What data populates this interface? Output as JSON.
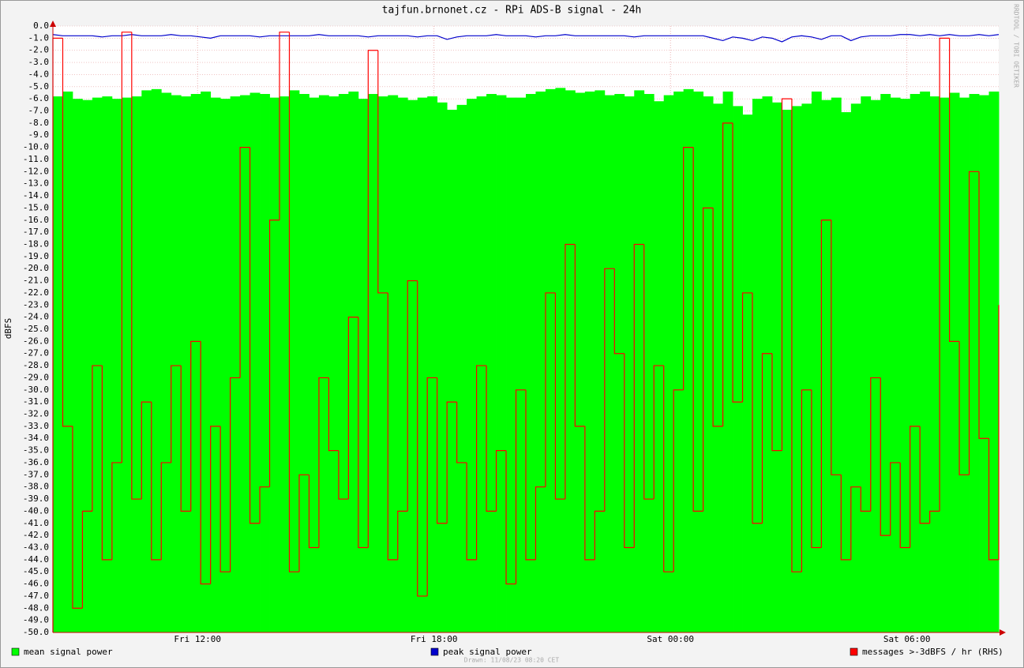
{
  "chart_data": {
    "type": "line",
    "title": "tajfun.brnonet.cz - RPi ADS-B signal - 24h",
    "y_label": "dBFS",
    "watermark": "RRDTOOL / TOBI OETIKER",
    "footnote": "Drawn: 11/08/23 08:20 CET",
    "grid": true,
    "x": [
      8.33,
      8.58,
      8.83,
      9.08,
      9.33,
      9.58,
      9.83,
      10.08,
      10.33,
      10.58,
      10.83,
      11.08,
      11.33,
      11.58,
      11.83,
      12.08,
      12.33,
      12.58,
      12.83,
      13.08,
      13.33,
      13.58,
      13.83,
      14.08,
      14.33,
      14.58,
      14.83,
      15.08,
      15.33,
      15.58,
      15.83,
      16.08,
      16.33,
      16.58,
      16.83,
      17.08,
      17.33,
      17.58,
      17.83,
      18.08,
      18.33,
      18.58,
      18.83,
      19.08,
      19.33,
      19.58,
      19.83,
      20.08,
      20.33,
      20.58,
      20.83,
      21.08,
      21.33,
      21.58,
      21.83,
      22.08,
      22.33,
      22.58,
      22.83,
      23.08,
      23.33,
      23.58,
      23.83,
      24.08,
      24.33,
      24.58,
      24.83,
      25.08,
      25.33,
      25.58,
      25.83,
      26.08,
      26.33,
      26.58,
      26.83,
      27.08,
      27.33,
      27.58,
      27.83,
      28.08,
      28.33,
      28.58,
      28.83,
      29.08,
      29.33,
      29.58,
      29.83,
      30.08,
      30.33,
      30.58,
      30.83,
      31.08,
      31.33,
      31.58,
      31.83,
      32.08,
      32.33
    ],
    "xlim": [
      8.33,
      32.33
    ],
    "xticks": [
      {
        "value": 12,
        "label": "Fri 12:00"
      },
      {
        "value": 18,
        "label": "Fri 18:00"
      },
      {
        "value": 24,
        "label": "Sat 00:00"
      },
      {
        "value": 30,
        "label": "Sat 06:00"
      }
    ],
    "ylim": [
      -50,
      0
    ],
    "yticks": [
      {
        "value": 0,
        "label": "0.0"
      },
      {
        "value": -1,
        "label": "-1.0"
      },
      {
        "value": -2,
        "label": "-2.0"
      },
      {
        "value": -3,
        "label": "-3.0"
      },
      {
        "value": -4,
        "label": "-4.0"
      },
      {
        "value": -5,
        "label": "-5.0"
      },
      {
        "value": -6,
        "label": "-6.0"
      },
      {
        "value": -7,
        "label": "-7.0"
      },
      {
        "value": -8,
        "label": "-8.0"
      },
      {
        "value": -9,
        "label": "-9.0"
      },
      {
        "value": -10,
        "label": "-10.0"
      },
      {
        "value": -11,
        "label": "-11.0"
      },
      {
        "value": -12,
        "label": "-12.0"
      },
      {
        "value": -13,
        "label": "-13.0"
      },
      {
        "value": -14,
        "label": "-14.0"
      },
      {
        "value": -15,
        "label": "-15.0"
      },
      {
        "value": -16,
        "label": "-16.0"
      },
      {
        "value": -17,
        "label": "-17.0"
      },
      {
        "value": -18,
        "label": "-18.0"
      },
      {
        "value": -19,
        "label": "-19.0"
      },
      {
        "value": -20,
        "label": "-20.0"
      },
      {
        "value": -21,
        "label": "-21.0"
      },
      {
        "value": -22,
        "label": "-22.0"
      },
      {
        "value": -23,
        "label": "-23.0"
      },
      {
        "value": -24,
        "label": "-24.0"
      },
      {
        "value": -25,
        "label": "-25.0"
      },
      {
        "value": -26,
        "label": "-26.0"
      },
      {
        "value": -27,
        "label": "-27.0"
      },
      {
        "value": -28,
        "label": "-28.0"
      },
      {
        "value": -29,
        "label": "-29.0"
      },
      {
        "value": -30,
        "label": "-30.0"
      },
      {
        "value": -31,
        "label": "-31.0"
      },
      {
        "value": -32,
        "label": "-32.0"
      },
      {
        "value": -33,
        "label": "-33.0"
      },
      {
        "value": -34,
        "label": "-34.0"
      },
      {
        "value": -35,
        "label": "-35.0"
      },
      {
        "value": -36,
        "label": "-36.0"
      },
      {
        "value": -37,
        "label": "-37.0"
      },
      {
        "value": -38,
        "label": "-38.0"
      },
      {
        "value": -39,
        "label": "-39.0"
      },
      {
        "value": -40,
        "label": "-40.0"
      },
      {
        "value": -41,
        "label": "-41.0"
      },
      {
        "value": -42,
        "label": "-42.0"
      },
      {
        "value": -43,
        "label": "-43.0"
      },
      {
        "value": -44,
        "label": "-44.0"
      },
      {
        "value": -45,
        "label": "-45.0"
      },
      {
        "value": -46,
        "label": "-46.0"
      },
      {
        "value": -47,
        "label": "-47.0"
      },
      {
        "value": -48,
        "label": "-48.0"
      },
      {
        "value": -49,
        "label": "-49.0"
      },
      {
        "value": -50,
        "label": "-50.0"
      }
    ],
    "series": [
      {
        "name": "mean signal power",
        "color": "#00ff00",
        "style": "area",
        "values": [
          -5.8,
          -5.4,
          -6.0,
          -6.1,
          -5.9,
          -5.8,
          -6.0,
          -5.9,
          -5.8,
          -5.3,
          -5.2,
          -5.5,
          -5.7,
          -5.8,
          -5.6,
          -5.4,
          -5.9,
          -6.0,
          -5.8,
          -5.7,
          -5.5,
          -5.6,
          -5.9,
          -5.8,
          -5.3,
          -5.6,
          -5.9,
          -5.7,
          -5.8,
          -5.6,
          -5.4,
          -6.0,
          -5.6,
          -5.8,
          -5.7,
          -5.9,
          -6.1,
          -5.9,
          -5.8,
          -6.3,
          -6.9,
          -6.5,
          -6.0,
          -5.8,
          -5.6,
          -5.7,
          -5.9,
          -5.9,
          -5.6,
          -5.4,
          -5.2,
          -5.1,
          -5.3,
          -5.5,
          -5.4,
          -5.3,
          -5.7,
          -5.6,
          -5.8,
          -5.3,
          -5.6,
          -6.2,
          -5.7,
          -5.4,
          -5.2,
          -5.4,
          -5.8,
          -6.4,
          -5.4,
          -6.6,
          -7.3,
          -6.0,
          -5.8,
          -6.3,
          -6.9,
          -6.6,
          -6.4,
          -5.4,
          -6.1,
          -5.9,
          -7.1,
          -6.4,
          -5.8,
          -6.1,
          -5.6,
          -5.9,
          -6.0,
          -5.6,
          -5.4,
          -5.8,
          -5.9,
          -5.5,
          -5.9,
          -5.6,
          -5.7,
          -5.4,
          -5.6
        ]
      },
      {
        "name": "peak signal power",
        "color": "#0000cc",
        "style": "line",
        "values": [
          -0.7,
          -0.8,
          -0.8,
          -0.8,
          -0.8,
          -0.9,
          -0.8,
          -0.8,
          -0.7,
          -0.8,
          -0.8,
          -0.8,
          -0.7,
          -0.8,
          -0.8,
          -0.9,
          -1.0,
          -0.8,
          -0.8,
          -0.8,
          -0.8,
          -0.9,
          -0.8,
          -0.8,
          -0.8,
          -0.8,
          -0.8,
          -0.7,
          -0.8,
          -0.8,
          -0.8,
          -0.8,
          -0.9,
          -0.8,
          -0.8,
          -0.8,
          -0.8,
          -0.9,
          -0.8,
          -0.8,
          -1.1,
          -0.9,
          -0.8,
          -0.8,
          -0.8,
          -0.7,
          -0.8,
          -0.8,
          -0.8,
          -0.9,
          -0.8,
          -0.8,
          -0.7,
          -0.8,
          -0.8,
          -0.8,
          -0.8,
          -0.8,
          -0.8,
          -0.9,
          -0.8,
          -0.8,
          -0.8,
          -0.8,
          -0.8,
          -0.8,
          -0.8,
          -1.0,
          -1.2,
          -0.9,
          -1.0,
          -1.2,
          -0.9,
          -1.0,
          -1.3,
          -0.9,
          -0.8,
          -0.9,
          -1.1,
          -0.8,
          -0.8,
          -1.2,
          -0.9,
          -0.8,
          -0.8,
          -0.8,
          -0.7,
          -0.7,
          -0.8,
          -0.7,
          -0.8,
          -0.7,
          -0.8,
          -0.8,
          -0.7,
          -0.8,
          -0.7
        ]
      },
      {
        "name": "messages >-3dBFS / hr (RHS)",
        "color": "#ff0000",
        "style": "step",
        "values": [
          -1,
          -33,
          -48,
          -40,
          -28,
          -44,
          -36,
          -0.5,
          -39,
          -31,
          -44,
          -36,
          -28,
          -40,
          -26,
          -46,
          -33,
          -45,
          -29,
          -10,
          -41,
          -38,
          -16,
          -0.5,
          -45,
          -37,
          -43,
          -29,
          -35,
          -39,
          -24,
          -43,
          -2,
          -22,
          -44,
          -40,
          -21,
          -47,
          -29,
          -41,
          -31,
          -36,
          -44,
          -28,
          -40,
          -35,
          -46,
          -30,
          -44,
          -38,
          -22,
          -39,
          -18,
          -33,
          -44,
          -40,
          -20,
          -27,
          -43,
          -18,
          -39,
          -28,
          -45,
          -30,
          -10,
          -40,
          -15,
          -33,
          -8,
          -31,
          -22,
          -41,
          -27,
          -35,
          -6,
          -45,
          -30,
          -43,
          -16,
          -37,
          -44,
          -38,
          -40,
          -29,
          -42,
          -36,
          -43,
          -33,
          -41,
          -40,
          -1,
          -26,
          -37,
          -12,
          -34,
          -44,
          -23
        ]
      }
    ]
  }
}
